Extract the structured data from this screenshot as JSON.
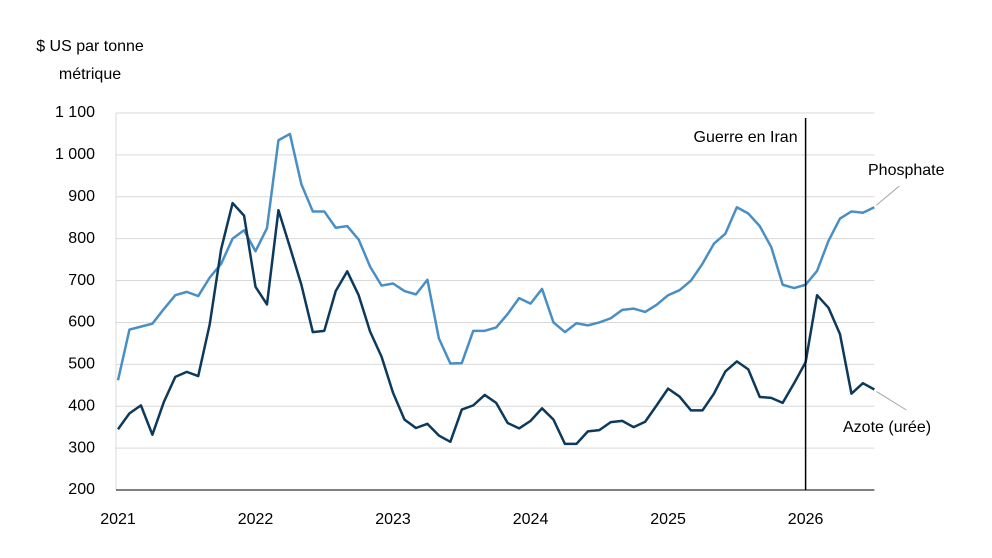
{
  "chart_data": {
    "type": "line",
    "y_label_lines": [
      "$ US par tonne",
      "métrique"
    ],
    "annotation": "Guerre en Iran",
    "categories": [
      "2021",
      null,
      null,
      null,
      null,
      null,
      null,
      null,
      null,
      null,
      null,
      null,
      "2022",
      null,
      null,
      null,
      null,
      null,
      null,
      null,
      null,
      null,
      null,
      null,
      "2023",
      null,
      null,
      null,
      null,
      null,
      null,
      null,
      null,
      null,
      null,
      null,
      "2024",
      null,
      null,
      null,
      null,
      null,
      null,
      null,
      null,
      null,
      null,
      null,
      "2025",
      null,
      null,
      null,
      null,
      null,
      null,
      null,
      null,
      null,
      null,
      null,
      "2026",
      null,
      null,
      null,
      null,
      null,
      null
    ],
    "series": [
      {
        "name": "Phosphate",
        "color": "#4a8fc4",
        "values": [
          462,
          583,
          590,
          597,
          632,
          665,
          673,
          663,
          707,
          740,
          800,
          820,
          770,
          825,
          1035,
          1050,
          930,
          865,
          865,
          826,
          830,
          798,
          733,
          688,
          693,
          675,
          667,
          702,
          562,
          502,
          503,
          580,
          580,
          588,
          620,
          658,
          645,
          680,
          600,
          577,
          598,
          593,
          600,
          610,
          630,
          633,
          625,
          642,
          665,
          677,
          700,
          740,
          788,
          812,
          875,
          860,
          830,
          780,
          690,
          682,
          690,
          723,
          795,
          848,
          865,
          862,
          875
        ]
      },
      {
        "name": "Azote (urée)",
        "color": "#0d3a5c",
        "values": [
          345,
          383,
          402,
          332,
          410,
          470,
          482,
          472,
          595,
          775,
          885,
          855,
          685,
          643,
          868,
          780,
          690,
          577,
          580,
          675,
          722,
          665,
          578,
          518,
          432,
          368,
          348,
          358,
          330,
          315,
          392,
          402,
          427,
          408,
          360,
          347,
          365,
          395,
          368,
          310,
          310,
          340,
          343,
          362,
          365,
          350,
          363,
          402,
          442,
          423,
          390,
          390,
          430,
          483,
          507,
          488,
          422,
          420,
          408,
          455,
          505,
          665,
          635,
          572,
          430,
          455,
          440
        ]
      }
    ],
    "ylim": [
      200,
      1100
    ],
    "yticks": [
      200,
      300,
      400,
      500,
      600,
      700,
      800,
      900,
      {
        "value": 1000,
        "label": "1 000"
      },
      {
        "value": 1100,
        "label": "1 100"
      }
    ],
    "grid": true
  }
}
